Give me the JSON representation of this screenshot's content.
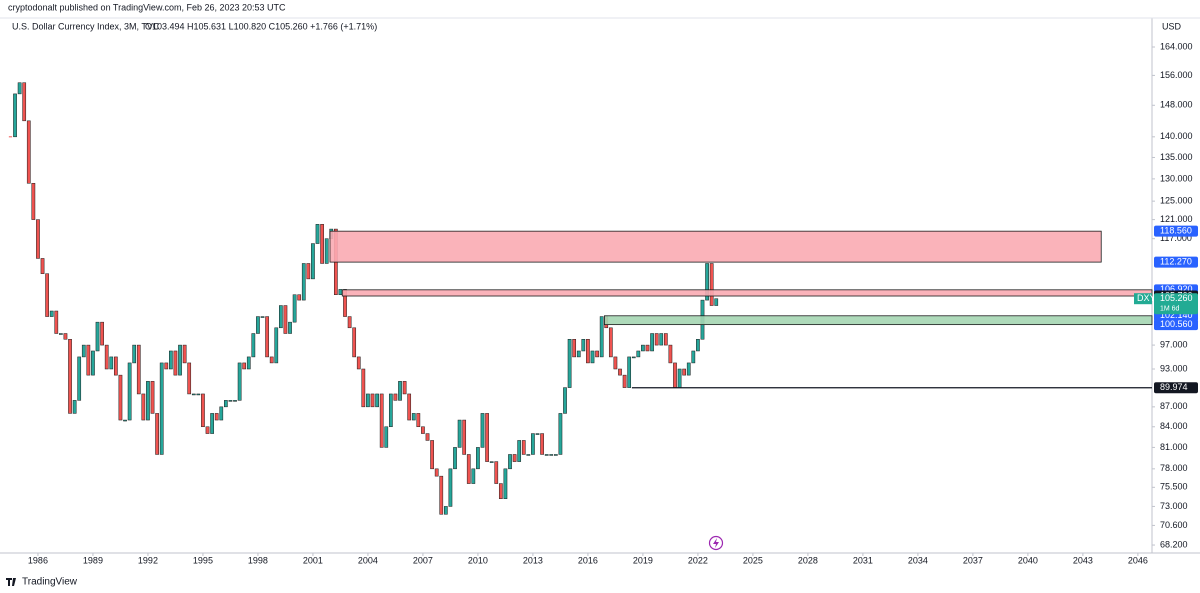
{
  "header": {
    "publisher": "cryptodonalt published on TradingView.com, Feb 26, 2023 20:53 UTC",
    "symbol": "U.S. Dollar Currency Index, 3M, TVC",
    "ohlc": "O103.494 H105.631 L100.820 C105.260 +1.766 (+1.71%)"
  },
  "footer": {
    "brand": "TradingView"
  },
  "chart_data": {
    "type": "candlestick",
    "currency": "USD",
    "log_scale": true,
    "up_color": "#26a69a",
    "down_color": "#ef5350",
    "x": [
      1984.5,
      1984.75,
      1985,
      1985.25,
      1985.5,
      1985.75,
      1986,
      1986.25,
      1986.5,
      1986.75,
      1987,
      1987.25,
      1987.5,
      1987.75,
      1988,
      1988.25,
      1988.5,
      1988.75,
      1989,
      1989.25,
      1989.5,
      1989.75,
      1990,
      1990.25,
      1990.5,
      1990.75,
      1991,
      1991.25,
      1991.5,
      1991.75,
      1992,
      1992.25,
      1992.5,
      1992.75,
      1993,
      1993.25,
      1993.5,
      1993.75,
      1994,
      1994.25,
      1994.5,
      1994.75,
      1995,
      1995.25,
      1995.5,
      1995.75,
      1996,
      1996.25,
      1996.5,
      1996.75,
      1997,
      1997.25,
      1997.5,
      1997.75,
      1998,
      1998.25,
      1998.5,
      1998.75,
      1999,
      1999.25,
      1999.5,
      1999.75,
      2000,
      2000.25,
      2000.5,
      2000.75,
      2001,
      2001.25,
      2001.5,
      2001.75,
      2002,
      2002.25,
      2002.5,
      2002.75,
      2003,
      2003.25,
      2003.5,
      2003.75,
      2004,
      2004.25,
      2004.5,
      2004.75,
      2005,
      2005.25,
      2005.5,
      2005.75,
      2006,
      2006.25,
      2006.5,
      2006.75,
      2007,
      2007.25,
      2007.5,
      2007.75,
      2008,
      2008.25,
      2008.5,
      2008.75,
      2009,
      2009.25,
      2009.5,
      2009.75,
      2010,
      2010.25,
      2010.5,
      2010.75,
      2011,
      2011.25,
      2011.5,
      2011.75,
      2012,
      2012.25,
      2012.5,
      2012.75,
      2013,
      2013.25,
      2013.5,
      2013.75,
      2014,
      2014.25,
      2014.5,
      2014.75,
      2015,
      2015.25,
      2015.5,
      2015.75,
      2016,
      2016.25,
      2016.5,
      2016.75,
      2017,
      2017.25,
      2017.5,
      2017.75,
      2018,
      2018.25,
      2018.5,
      2018.75,
      2019,
      2019.25,
      2019.5,
      2019.75,
      2020,
      2020.25,
      2020.5,
      2020.75,
      2021,
      2021.25,
      2021.5,
      2021.75,
      2022,
      2022.25,
      2022.5,
      2022.75,
      2023
    ],
    "close": [
      140,
      151,
      154,
      144,
      129,
      121,
      113,
      110,
      102,
      103,
      99,
      99,
      98,
      86,
      88,
      95,
      97,
      92,
      96,
      101,
      97,
      93,
      95,
      92,
      85,
      85,
      94,
      97,
      89,
      85,
      91,
      86,
      80,
      94,
      93,
      96,
      92,
      97,
      94,
      89,
      89,
      89,
      84,
      83,
      86,
      85,
      87,
      88,
      88,
      88,
      94,
      93,
      95,
      99,
      102,
      102,
      95,
      94,
      100,
      104,
      99,
      101,
      106,
      105,
      112,
      109,
      116,
      120,
      112,
      117,
      119,
      106,
      107,
      102,
      100,
      95,
      93,
      87,
      89,
      87,
      89,
      81,
      84,
      89,
      88,
      91,
      89,
      85,
      86,
      84,
      83,
      82,
      78,
      77,
      72,
      73,
      78,
      81,
      85,
      80,
      76,
      78,
      81,
      86,
      79,
      79,
      76,
      74,
      78,
      80,
      79,
      82,
      80,
      80,
      83,
      83,
      80,
      80,
      80,
      80,
      86,
      90,
      98,
      95,
      96,
      98,
      94,
      96,
      95,
      102,
      100,
      95,
      93,
      92,
      90,
      95,
      95,
      96,
      97,
      96,
      99,
      97,
      99,
      97,
      94,
      90,
      93,
      92,
      94,
      96,
      98,
      105,
      112,
      104,
      105.26
    ],
    "xlim": [
      1983.93,
      2046.77
    ],
    "xticks": [
      1986,
      1989,
      1992,
      1995,
      1998,
      2001,
      2004,
      2007,
      2010,
      2013,
      2016,
      2019,
      2022,
      2025,
      2028,
      2031,
      2034,
      2037,
      2040,
      2043,
      2046
    ],
    "ylim": [
      67.25,
      172.6
    ],
    "yticks": [
      {
        "value": 164,
        "label": "164.000"
      },
      {
        "value": 156,
        "label": "156.000"
      },
      {
        "value": 148,
        "label": "148.000"
      },
      {
        "value": 140,
        "label": "140.000"
      },
      {
        "value": 135,
        "label": "135.000"
      },
      {
        "value": 130,
        "label": "130.000"
      },
      {
        "value": 125,
        "label": "125.000"
      },
      {
        "value": 121,
        "label": "121.000"
      },
      {
        "value": 117,
        "label": "117.000"
      },
      {
        "value": 97,
        "label": "97.000"
      },
      {
        "value": 93,
        "label": "93.000"
      },
      {
        "value": 87,
        "label": "87.000"
      },
      {
        "value": 84,
        "label": "84.000"
      },
      {
        "value": 81,
        "label": "81.000"
      },
      {
        "value": 78,
        "label": "78.000"
      },
      {
        "value": 75.5,
        "label": "75.500"
      },
      {
        "value": 73,
        "label": "73.000"
      },
      {
        "value": 70.6,
        "label": "70.600"
      },
      {
        "value": 68.2,
        "label": "68.200"
      }
    ],
    "zones": [
      {
        "x0": 2001.93,
        "x1": 2044.0,
        "fill": "#f9abb3",
        "stroke": "#1a1a1a",
        "edges": [
          {
            "value": 118.56,
            "label": "118.560",
            "color": "#2962ff"
          },
          {
            "value": 112.27,
            "label": "112.270",
            "color": "#2962ff"
          }
        ]
      },
      {
        "x0": 2002.6,
        "extend_right": true,
        "fill": "#f9abb3",
        "stroke": "#1a1a1a",
        "edges": [
          {
            "value": 106.92,
            "label": "106.920",
            "color": "#2962ff"
          },
          {
            "value": 105.76,
            "label": "105.760",
            "color": "#131722"
          }
        ]
      },
      {
        "x0": 2016.9,
        "extend_right": true,
        "fill": "#a5d6b3",
        "stroke": "#1a1a1a",
        "edges": [
          {
            "value": 102.14,
            "label": "102.140",
            "color": "#2962ff"
          },
          {
            "value": 100.56,
            "label": "100.560",
            "color": "#2962ff"
          }
        ]
      }
    ],
    "levels": [
      {
        "x0": 2018.4,
        "value": 89.974,
        "label": "89.974",
        "color": "#131722"
      }
    ],
    "last": {
      "symbol": "DXY",
      "value": 105.26,
      "label": "105.260",
      "countdown": "1M 6d",
      "color": "#22ab94"
    }
  }
}
